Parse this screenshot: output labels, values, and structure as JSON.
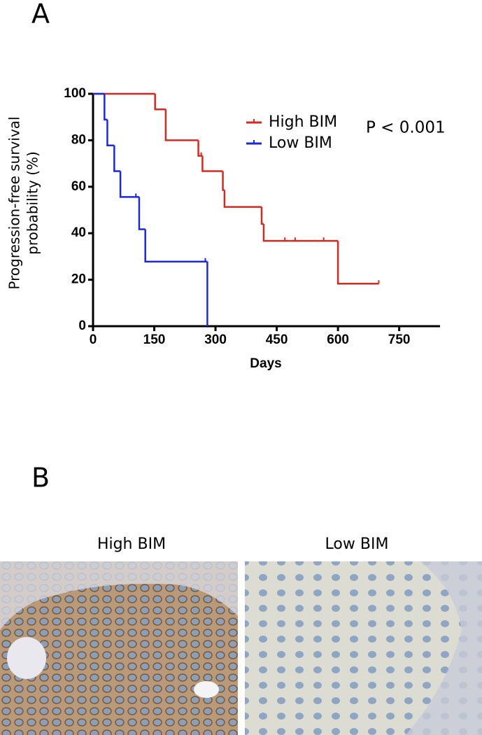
{
  "panel_labels": [
    "A",
    "B"
  ],
  "image_captions": [
    "High BIM",
    "Low BIM"
  ],
  "chart_data": {
    "type": "step",
    "ylabel": [
      "Progression-free survival",
      "probability (%)"
    ],
    "xlabel": "Days",
    "annotation": "P < 0.001",
    "xlim": [
      0,
      850
    ],
    "ylim": [
      0,
      100
    ],
    "xticks": [
      0,
      150,
      300,
      450,
      600,
      750
    ],
    "yticks": [
      0,
      20,
      40,
      60,
      80,
      100
    ],
    "series": [
      {
        "name": "High BIM",
        "color": "#d42a20",
        "x": [
          0,
          152,
          178,
          258,
          268,
          318,
          322,
          413,
          418,
          600,
          700
        ],
        "values": [
          100,
          93.3,
          80,
          73.3,
          66.7,
          58.6,
          51.3,
          44,
          36.7,
          18.3,
          18.3
        ],
        "censored_x": [
          265,
          470,
          495,
          565,
          700
        ],
        "censored_values": [
          73.3,
          36.7,
          36.7,
          36.7,
          18.3
        ]
      },
      {
        "name": "Low BIM",
        "color": "#1a2ad8",
        "x": [
          0,
          28,
          35,
          52,
          67,
          113,
          128,
          280
        ],
        "values": [
          100,
          88.9,
          77.8,
          66.7,
          55.6,
          41.7,
          27.8,
          0
        ],
        "censored_x": [
          105,
          275
        ],
        "censored_values": [
          55.6,
          27.8
        ]
      }
    ]
  }
}
